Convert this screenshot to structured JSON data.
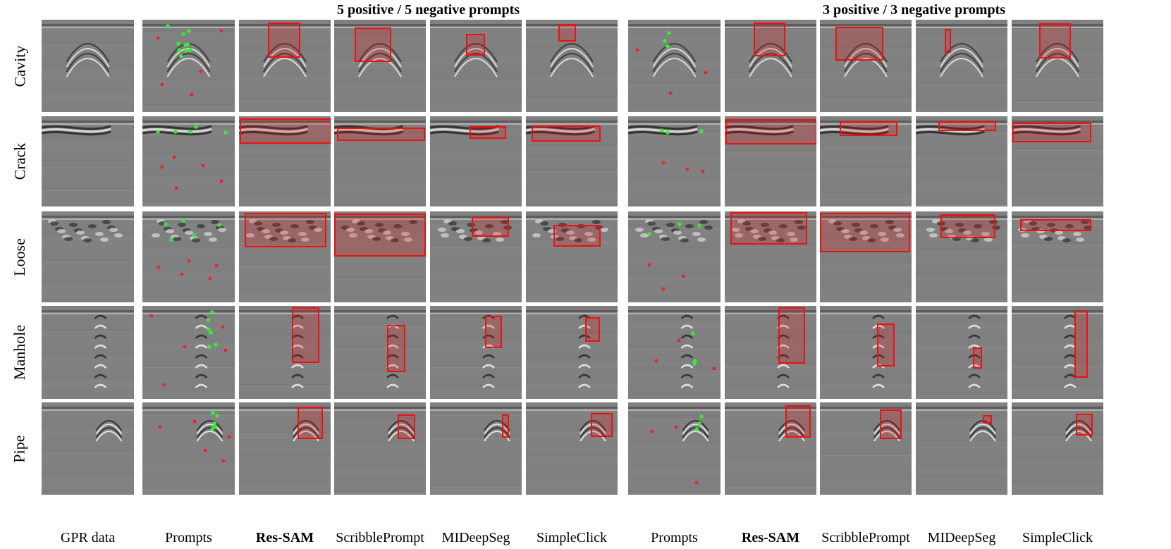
{
  "groups": [
    {
      "title": "5 positive / 5 negative prompts"
    },
    {
      "title": "3 positive / 3 negative prompts"
    }
  ],
  "rows": [
    {
      "label": "Cavity"
    },
    {
      "label": "Crack"
    },
    {
      "label": "Loose"
    },
    {
      "label": "Manhole"
    },
    {
      "label": "Pipe"
    }
  ],
  "columns": [
    {
      "label": "GPR data",
      "bold": false
    },
    {
      "label": "Prompts",
      "bold": false
    },
    {
      "label": "Res-SAM",
      "bold": true
    },
    {
      "label": "ScribblePrompt",
      "bold": false
    },
    {
      "label": "MIDeepSeg",
      "bold": false
    },
    {
      "label": "SimpleClick",
      "bold": false
    },
    {
      "label": "Prompts",
      "bold": false
    },
    {
      "label": "Res-SAM",
      "bold": true
    },
    {
      "label": "ScribblePrompt",
      "bold": false
    },
    {
      "label": "MIDeepSeg",
      "bold": false
    },
    {
      "label": "SimpleClick",
      "bold": false
    }
  ],
  "colors": {
    "positive_prompt": "#33ee33",
    "negative_prompt": "#ee2020",
    "box": "#ee1111",
    "background": "#808080"
  }
}
